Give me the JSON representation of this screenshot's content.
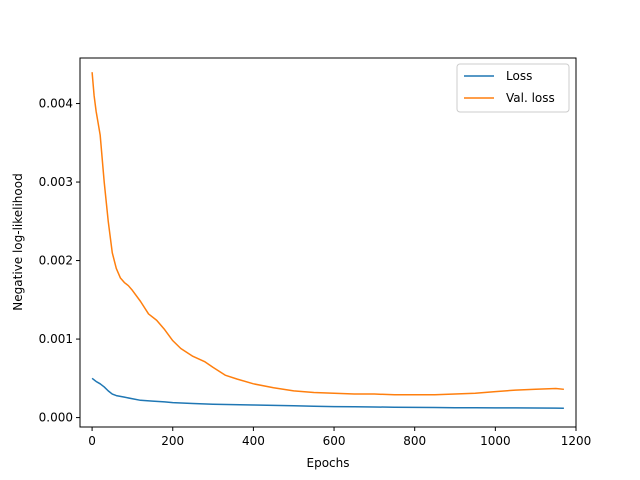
{
  "chart_data": {
    "type": "line",
    "title": "",
    "xlabel": "Epochs",
    "ylabel": "Negative log-likelihood",
    "xlim": [
      -30,
      1200
    ],
    "ylim": [
      -0.00012,
      0.00458
    ],
    "xticks": [
      0,
      200,
      400,
      600,
      800,
      1000,
      1200
    ],
    "xtick_labels": [
      "0",
      "200",
      "400",
      "600",
      "800",
      "1000",
      "1200"
    ],
    "yticks": [
      0.0,
      0.001,
      0.002,
      0.003,
      0.004
    ],
    "ytick_labels": [
      "0.000",
      "0.001",
      "0.002",
      "0.003",
      "0.004"
    ],
    "grid": false,
    "legend_position": "top-right",
    "series": [
      {
        "name": "Loss",
        "color": "#1f77b4",
        "x": [
          0,
          10,
          20,
          30,
          40,
          50,
          60,
          70,
          80,
          100,
          120,
          150,
          180,
          200,
          250,
          300,
          350,
          400,
          450,
          500,
          550,
          600,
          650,
          700,
          750,
          800,
          850,
          900,
          950,
          1000,
          1050,
          1100,
          1150,
          1170
        ],
        "y": [
          0.0005,
          0.00046,
          0.00043,
          0.00039,
          0.00034,
          0.0003,
          0.00028,
          0.00027,
          0.00026,
          0.00024,
          0.00022,
          0.00021,
          0.0002,
          0.00019,
          0.00018,
          0.00017,
          0.000165,
          0.00016,
          0.000155,
          0.00015,
          0.000145,
          0.00014,
          0.000138,
          0.000135,
          0.000132,
          0.00013,
          0.000128,
          0.000126,
          0.000125,
          0.000124,
          0.000123,
          0.000122,
          0.00012,
          0.000118
        ]
      },
      {
        "name": "Val. loss",
        "color": "#ff7f0e",
        "x": [
          0,
          5,
          10,
          20,
          30,
          40,
          50,
          60,
          70,
          80,
          90,
          100,
          120,
          140,
          160,
          180,
          200,
          220,
          250,
          280,
          300,
          330,
          360,
          400,
          450,
          500,
          550,
          600,
          650,
          700,
          750,
          800,
          850,
          900,
          950,
          1000,
          1050,
          1100,
          1150,
          1170
        ],
        "y": [
          0.0044,
          0.0041,
          0.0039,
          0.0036,
          0.003,
          0.0025,
          0.0021,
          0.0019,
          0.00178,
          0.00172,
          0.00168,
          0.00162,
          0.00148,
          0.00132,
          0.00124,
          0.00112,
          0.00098,
          0.00088,
          0.00078,
          0.00071,
          0.00064,
          0.00054,
          0.00049,
          0.00043,
          0.00038,
          0.00034,
          0.00032,
          0.00031,
          0.0003,
          0.0003,
          0.00029,
          0.00029,
          0.00029,
          0.0003,
          0.00031,
          0.00033,
          0.00035,
          0.00036,
          0.00037,
          0.00036
        ]
      }
    ]
  }
}
